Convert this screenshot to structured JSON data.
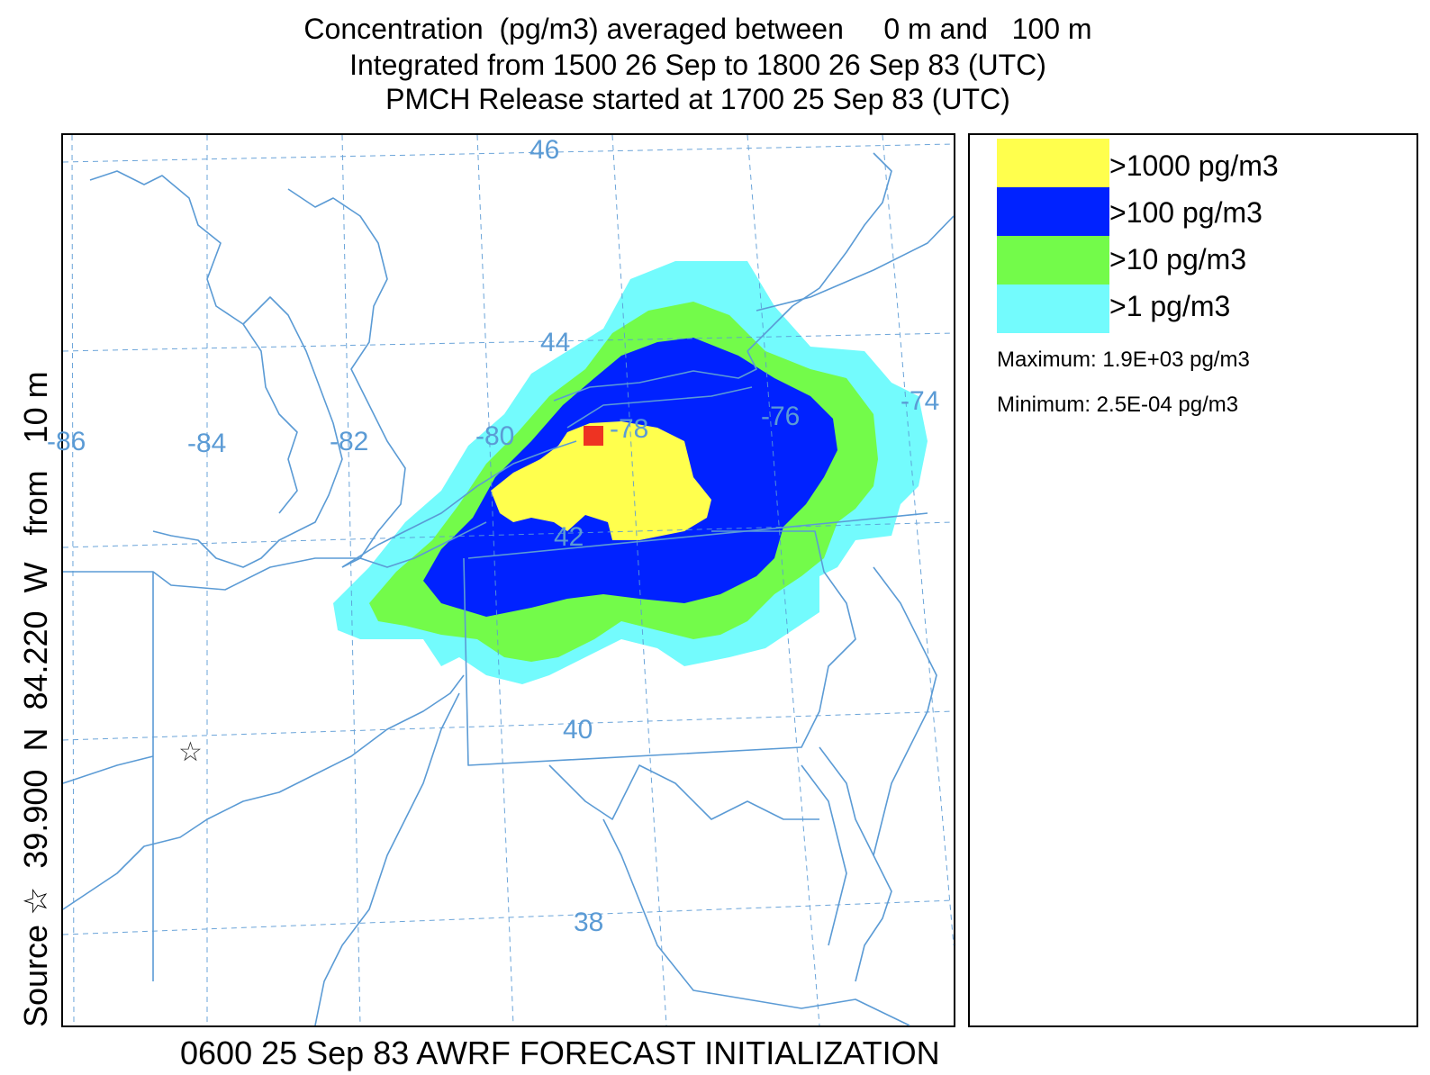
{
  "title": {
    "line1": "Concentration  (pg/m3) averaged between     0 m and   100 m",
    "line2": "Integrated from 1500 26 Sep to 1800 26 Sep 83 (UTC)",
    "line3": "PMCH Release started at 1700 25 Sep 83 (UTC)"
  },
  "source_label": "Source ☆  39.900  N  84.220  W   from   10 m",
  "caption": "0600 25 Sep 83 AWRF FORECAST INITIALIZATION",
  "legend": {
    "items": [
      {
        "label": ">1000 pg/m3",
        "color": "#ffff4d"
      },
      {
        "label": ">100 pg/m3",
        "color": "#0022ff"
      },
      {
        "label": ">10 pg/m3",
        "color": "#73fb4a"
      },
      {
        "label": ">1 pg/m3",
        "color": "#73fbfd"
      }
    ],
    "maximum": "Maximum: 1.9E+03 pg/m3",
    "minimum": "Minimum: 2.5E-04 pg/m3"
  },
  "map": {
    "longitude_labels": [
      "-86",
      "-84",
      "-82",
      "-80",
      "-78",
      "-76",
      "-74"
    ],
    "latitude_labels": [
      "46",
      "44",
      "42",
      "40",
      "38"
    ],
    "colors": {
      "boundaries": "#5b9bd5",
      "grid": "#5b9bd5",
      "max_marker": "#ee3322",
      "source_marker": "#333333"
    },
    "source_marker": "☆"
  }
}
